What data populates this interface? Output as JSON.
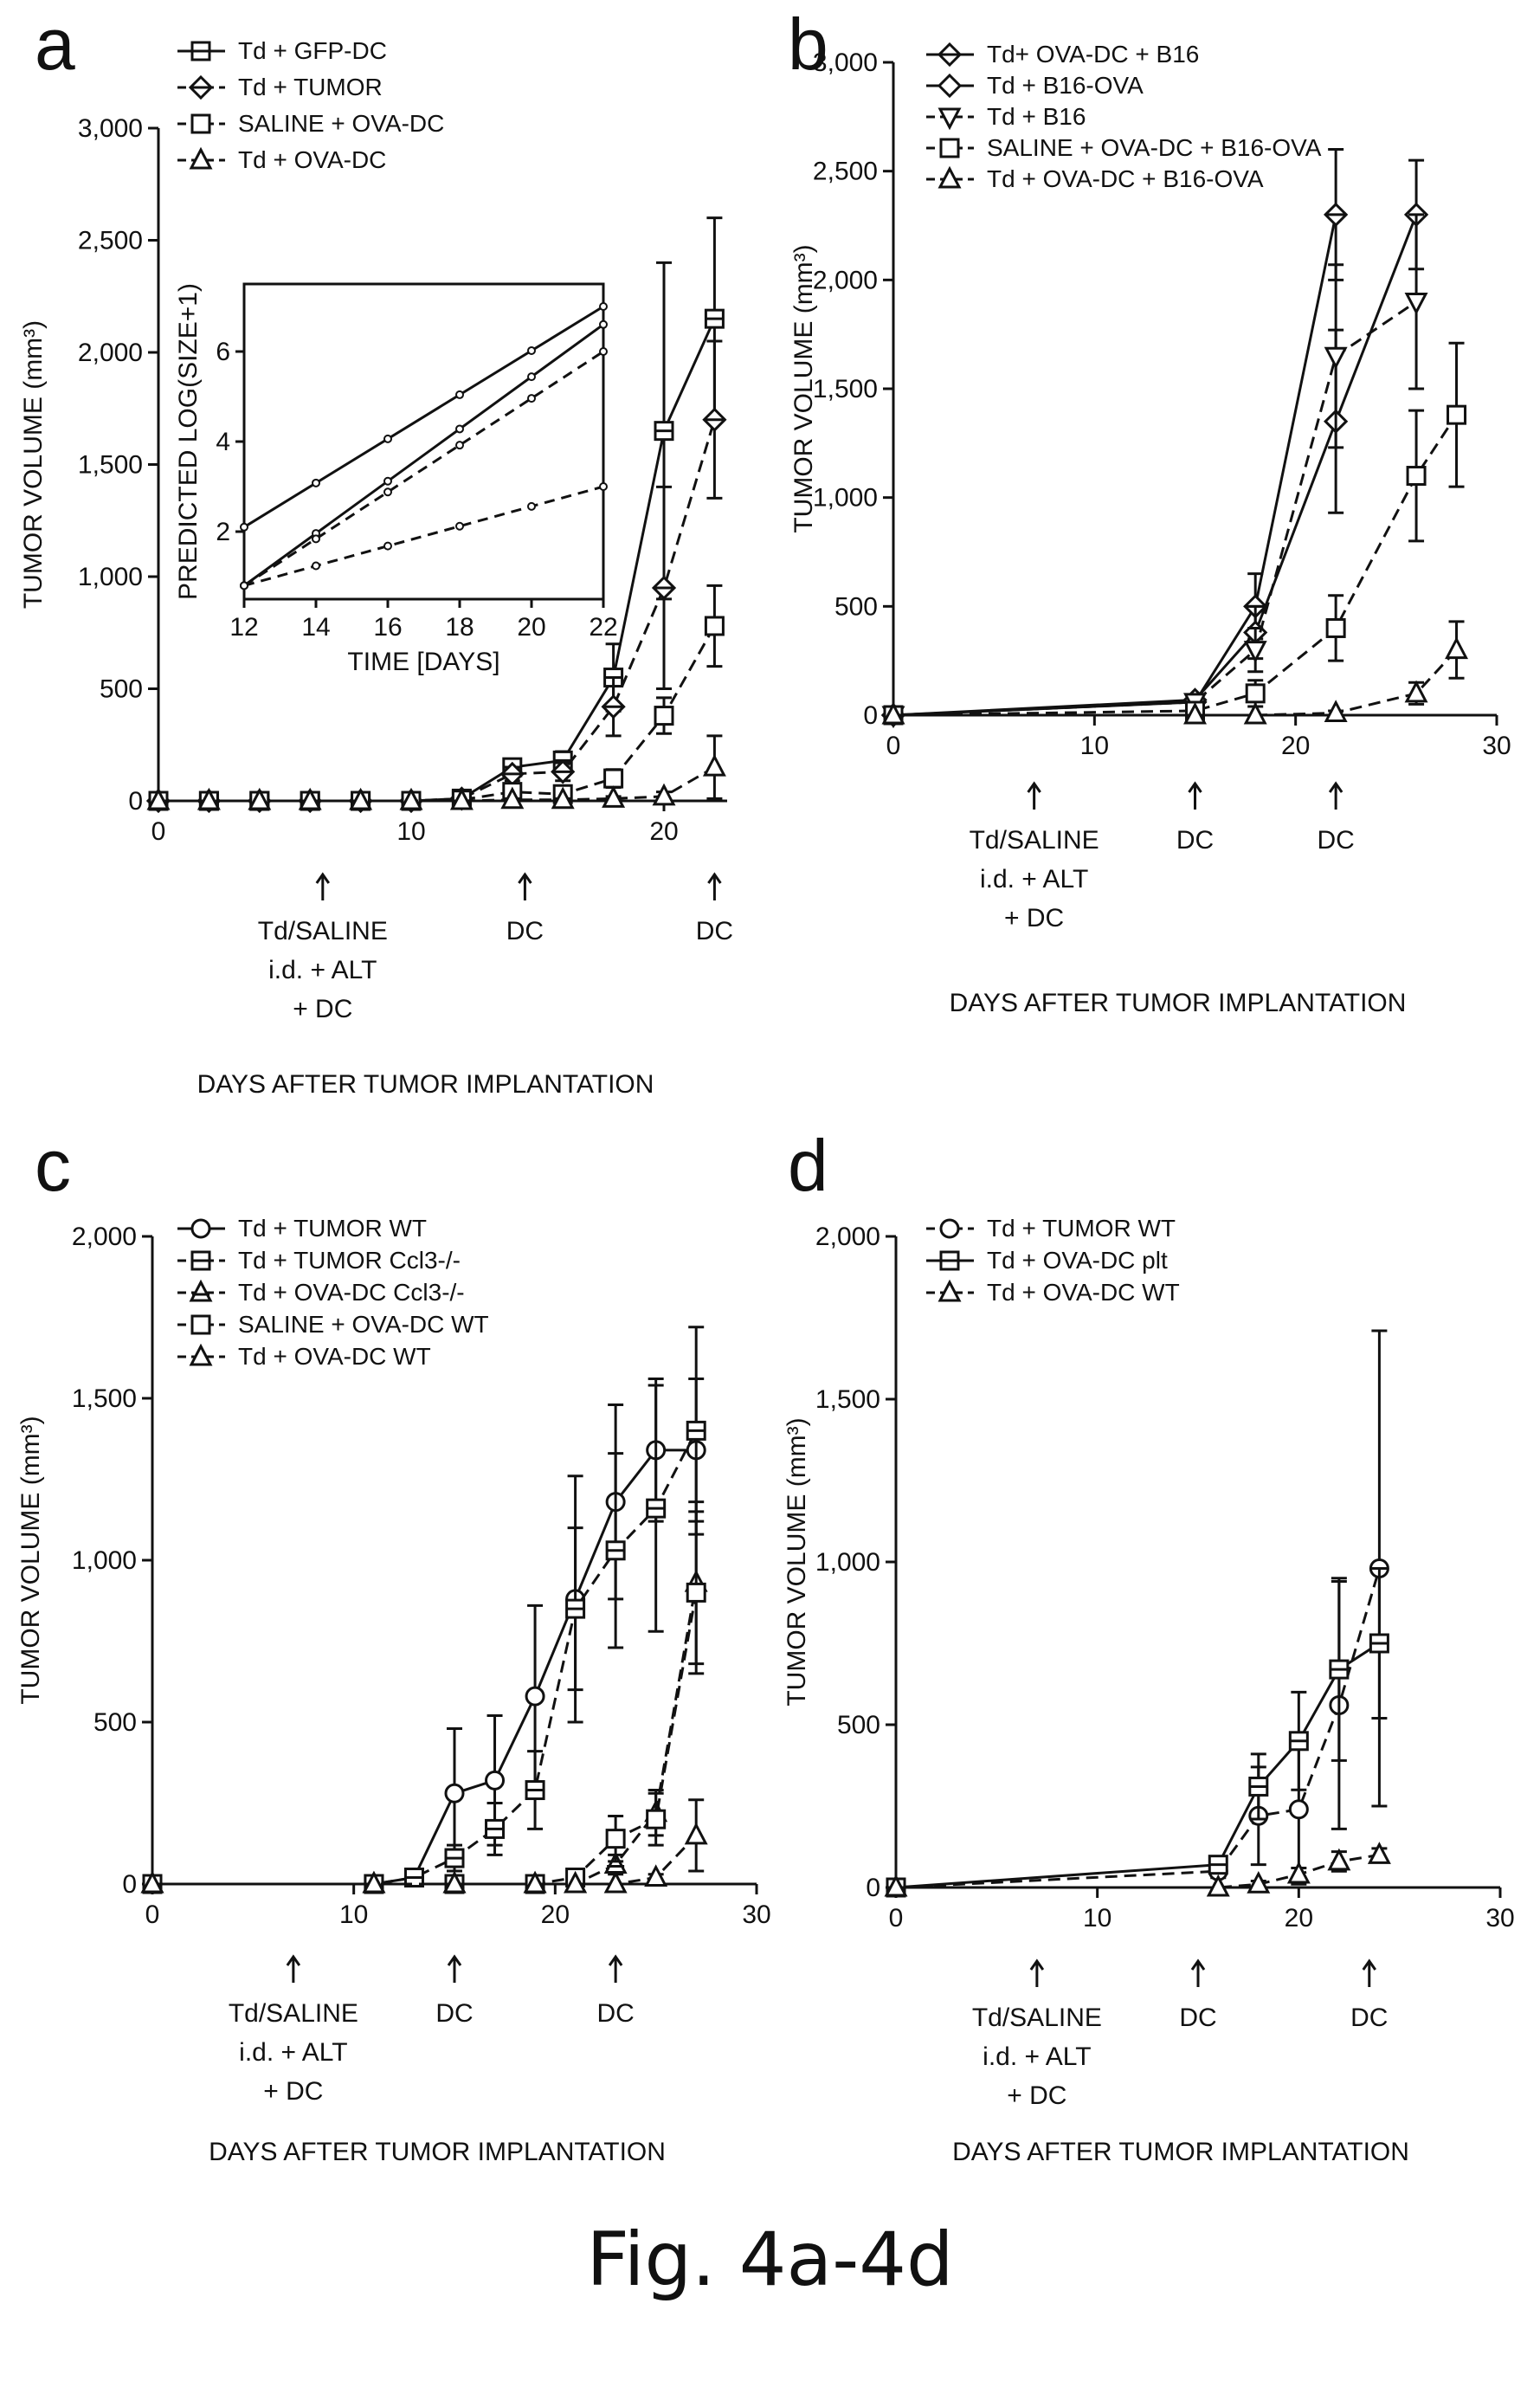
{
  "caption": "Fig. 4a-4d",
  "chart_data": [
    {
      "id": "a",
      "type": "line",
      "letter": "a",
      "ylabel": "TUMOR VOLUME (mm³)",
      "xlabel": "DAYS AFTER TUMOR IMPLANTATION",
      "xlim": [
        0,
        22.5
      ],
      "ylim": [
        0,
        3000
      ],
      "xticks": [
        0,
        10,
        20
      ],
      "xticklabels": [
        "0",
        "10",
        "20"
      ],
      "yticks": [
        0,
        500,
        1000,
        1500,
        2000,
        2500,
        3000
      ],
      "yticklabels": [
        "0",
        "500",
        "1,000",
        "1,500",
        "2,000",
        "2,500",
        "3,000"
      ],
      "series": [
        {
          "name": "Td + GFP-DC",
          "marker": "square-cross",
          "dash": false,
          "x": [
            0,
            2,
            4,
            6,
            8,
            10,
            12,
            14,
            16,
            18,
            20,
            22
          ],
          "y": [
            0,
            0,
            0,
            0,
            0,
            0,
            10,
            150,
            180,
            550,
            1650,
            2150
          ],
          "err": [
            0,
            0,
            0,
            0,
            0,
            0,
            10,
            30,
            40,
            150,
            750,
            450
          ]
        },
        {
          "name": "Td + TUMOR",
          "marker": "diamond-cross",
          "dash": true,
          "x": [
            0,
            2,
            4,
            6,
            8,
            10,
            12,
            14,
            16,
            18,
            20,
            22
          ],
          "y": [
            0,
            0,
            0,
            0,
            0,
            0,
            10,
            120,
            130,
            420,
            950,
            1700
          ],
          "err": [
            0,
            0,
            0,
            0,
            0,
            0,
            10,
            30,
            40,
            130,
            450,
            350
          ]
        },
        {
          "name": "SALINE + OVA-DC",
          "marker": "square",
          "dash": true,
          "x": [
            0,
            2,
            4,
            6,
            8,
            10,
            12,
            14,
            16,
            18,
            20,
            22
          ],
          "y": [
            0,
            0,
            0,
            0,
            0,
            0,
            5,
            40,
            30,
            100,
            380,
            780
          ],
          "err": [
            0,
            0,
            0,
            0,
            0,
            0,
            5,
            10,
            15,
            40,
            80,
            180
          ]
        },
        {
          "name": "Td + OVA-DC",
          "marker": "triangle",
          "dash": true,
          "x": [
            0,
            2,
            4,
            6,
            8,
            10,
            12,
            14,
            16,
            18,
            20,
            22
          ],
          "y": [
            0,
            0,
            0,
            0,
            0,
            0,
            0,
            5,
            5,
            10,
            20,
            150
          ],
          "err": [
            0,
            0,
            0,
            0,
            0,
            0,
            0,
            5,
            5,
            10,
            20,
            140
          ]
        }
      ],
      "annotations": [
        {
          "x": 6.5,
          "lines": [
            "Td/SALINE",
            "i.d. + ALT",
            "+ DC"
          ]
        },
        {
          "x": 14.5,
          "lines": [
            "DC"
          ]
        },
        {
          "x": 22,
          "lines": [
            "DC"
          ]
        }
      ],
      "inset": {
        "xlabel": "TIME [DAYS]",
        "ylabel": "PREDICTED LOG(SIZE+1)",
        "xlim": [
          12,
          22
        ],
        "ylim": [
          0.5,
          7.5
        ],
        "xticks": [
          12,
          14,
          16,
          18,
          20,
          22
        ],
        "yticks": [
          2,
          4,
          6
        ],
        "lines": [
          {
            "dash": false,
            "x": [
              12,
              22
            ],
            "y": [
              2.1,
              7.0
            ]
          },
          {
            "dash": false,
            "x": [
              12,
              22
            ],
            "y": [
              0.8,
              6.6
            ]
          },
          {
            "dash": true,
            "x": [
              12,
              22
            ],
            "y": [
              0.8,
              6.0
            ]
          },
          {
            "dash": true,
            "x": [
              12,
              22
            ],
            "y": [
              0.8,
              3.0
            ]
          }
        ]
      }
    },
    {
      "id": "b",
      "type": "line",
      "letter": "b",
      "ylabel": "TUMOR VOLUME (mm³)",
      "xlabel": "DAYS AFTER TUMOR IMPLANTATION",
      "xlim": [
        0,
        30
      ],
      "ylim": [
        0,
        3000
      ],
      "xticks": [
        0,
        10,
        20,
        30
      ],
      "xticklabels": [
        "0",
        "10",
        "20",
        "30"
      ],
      "yticks": [
        0,
        500,
        1000,
        1500,
        2000,
        2500,
        3000
      ],
      "yticklabels": [
        "0",
        "500",
        "1,000",
        "1,500",
        "2,000",
        "2,500",
        "3,000"
      ],
      "series": [
        {
          "name": "Td+ OVA-DC + B16",
          "marker": "diamond-cross",
          "dash": false,
          "x": [
            0,
            15,
            18,
            22
          ],
          "y": [
            0,
            60,
            500,
            2300
          ],
          "err": [
            0,
            20,
            150,
            300
          ]
        },
        {
          "name": "Td + B16-OVA",
          "marker": "diamond",
          "dash": false,
          "x": [
            0,
            15,
            18,
            22,
            26
          ],
          "y": [
            0,
            70,
            380,
            1350,
            2300
          ],
          "err": [
            0,
            20,
            120,
            420,
            250
          ]
        },
        {
          "name": "Td + B16",
          "marker": "tri-down",
          "dash": true,
          "x": [
            0,
            15,
            18,
            22,
            26
          ],
          "y": [
            0,
            60,
            300,
            1650,
            1900
          ],
          "err": [
            0,
            20,
            100,
            420,
            400
          ]
        },
        {
          "name": "SALINE + OVA-DC + B16-OVA",
          "marker": "square",
          "dash": true,
          "x": [
            0,
            15,
            18,
            22,
            26,
            28
          ],
          "y": [
            0,
            20,
            100,
            400,
            1100,
            1380
          ],
          "err": [
            0,
            10,
            60,
            150,
            300,
            330
          ]
        },
        {
          "name": "Td + OVA-DC + B16-OVA",
          "marker": "triangle",
          "dash": true,
          "x": [
            0,
            15,
            18,
            22,
            26,
            28
          ],
          "y": [
            0,
            0,
            0,
            10,
            100,
            300
          ],
          "err": [
            0,
            0,
            0,
            10,
            50,
            130
          ]
        }
      ],
      "annotations": [
        {
          "x": 7,
          "lines": [
            "Td/SALINE",
            "i.d. + ALT",
            "+ DC"
          ]
        },
        {
          "x": 15,
          "lines": [
            "DC"
          ]
        },
        {
          "x": 22,
          "lines": [
            "DC"
          ]
        }
      ]
    },
    {
      "id": "c",
      "type": "line",
      "letter": "c",
      "ylabel": "TUMOR VOLUME (mm³)",
      "xlabel": "DAYS AFTER TUMOR IMPLANTATION",
      "xlim": [
        0,
        30
      ],
      "ylim": [
        0,
        2000
      ],
      "xticks": [
        0,
        10,
        20,
        30
      ],
      "xticklabels": [
        "0",
        "10",
        "20",
        "30"
      ],
      "yticks": [
        0,
        500,
        1000,
        1500,
        2000
      ],
      "yticklabels": [
        "0",
        "500",
        "1,000",
        "1,500",
        "2,000"
      ],
      "series": [
        {
          "name": "Td + TUMOR WT",
          "marker": "circle",
          "dash": false,
          "x": [
            0,
            11,
            13,
            15,
            17,
            19,
            21,
            23,
            25,
            27
          ],
          "y": [
            0,
            0,
            20,
            280,
            320,
            580,
            880,
            1180,
            1340,
            1340
          ],
          "err": [
            0,
            0,
            10,
            200,
            200,
            280,
            380,
            300,
            220,
            220
          ]
        },
        {
          "name": "Td + TUMOR Ccl3-/-",
          "marker": "square-cross",
          "dash": true,
          "x": [
            0,
            11,
            13,
            15,
            17,
            19,
            21,
            23,
            25,
            27
          ],
          "y": [
            0,
            0,
            20,
            80,
            170,
            290,
            850,
            1030,
            1160,
            1400
          ],
          "err": [
            0,
            0,
            10,
            40,
            80,
            120,
            250,
            300,
            380,
            320
          ]
        },
        {
          "name": "Td + OVA-DC Ccl3-/-",
          "marker": "tri-cross",
          "dash": true,
          "x": [
            0,
            11,
            15,
            19,
            21,
            23,
            25,
            27
          ],
          "y": [
            0,
            0,
            0,
            0,
            0,
            60,
            220,
            930
          ],
          "err": [
            0,
            0,
            0,
            0,
            0,
            30,
            70,
            250
          ]
        },
        {
          "name": "SALINE + OVA-DC WT",
          "marker": "square",
          "dash": true,
          "x": [
            0,
            11,
            15,
            19,
            21,
            23,
            25,
            27
          ],
          "y": [
            0,
            0,
            0,
            0,
            20,
            140,
            200,
            900
          ],
          "err": [
            0,
            0,
            0,
            0,
            10,
            70,
            80,
            250
          ]
        },
        {
          "name": "Td + OVA-DC WT",
          "marker": "triangle",
          "dash": true,
          "x": [
            0,
            11,
            15,
            19,
            21,
            23,
            25,
            27
          ],
          "y": [
            0,
            0,
            0,
            0,
            0,
            0,
            20,
            150
          ],
          "err": [
            0,
            0,
            0,
            0,
            0,
            0,
            10,
            110
          ]
        }
      ],
      "annotations": [
        {
          "x": 7,
          "lines": [
            "Td/SALINE",
            "i.d. + ALT",
            "+ DC"
          ]
        },
        {
          "x": 15,
          "lines": [
            "DC"
          ]
        },
        {
          "x": 23,
          "lines": [
            "DC"
          ]
        }
      ]
    },
    {
      "id": "d",
      "type": "line",
      "letter": "d",
      "ylabel": "TUMOR VOLUME (mm³)",
      "xlabel": "DAYS AFTER TUMOR IMPLANTATION",
      "xlim": [
        0,
        30
      ],
      "ylim": [
        0,
        2000
      ],
      "xticks": [
        0,
        10,
        20,
        30
      ],
      "xticklabels": [
        "0",
        "10",
        "20",
        "30"
      ],
      "yticks": [
        0,
        500,
        1000,
        1500,
        2000
      ],
      "yticklabels": [
        "0",
        "500",
        "1,000",
        "1,500",
        "2,000"
      ],
      "series": [
        {
          "name": "Td + TUMOR WT",
          "marker": "circle",
          "dash": true,
          "x": [
            0,
            16,
            18,
            20,
            22,
            24
          ],
          "y": [
            0,
            50,
            220,
            240,
            560,
            980
          ],
          "err": [
            0,
            20,
            150,
            230,
            380,
            730
          ]
        },
        {
          "name": "Td + OVA-DC plt",
          "marker": "square-cross",
          "dash": false,
          "x": [
            0,
            16,
            18,
            20,
            22,
            24
          ],
          "y": [
            0,
            70,
            310,
            450,
            670,
            750
          ],
          "err": [
            0,
            20,
            100,
            150,
            280,
            230
          ]
        },
        {
          "name": "Td + OVA-DC WT",
          "marker": "triangle",
          "dash": true,
          "x": [
            0,
            16,
            18,
            20,
            22,
            24
          ],
          "y": [
            0,
            0,
            10,
            40,
            80,
            100
          ],
          "err": [
            0,
            0,
            10,
            20,
            30,
            20
          ]
        }
      ],
      "annotations": [
        {
          "x": 7,
          "lines": [
            "Td/SALINE",
            "i.d. + ALT",
            "+ DC"
          ]
        },
        {
          "x": 15,
          "lines": [
            "DC"
          ]
        },
        {
          "x": 23.5,
          "lines": [
            "DC"
          ]
        }
      ]
    }
  ]
}
